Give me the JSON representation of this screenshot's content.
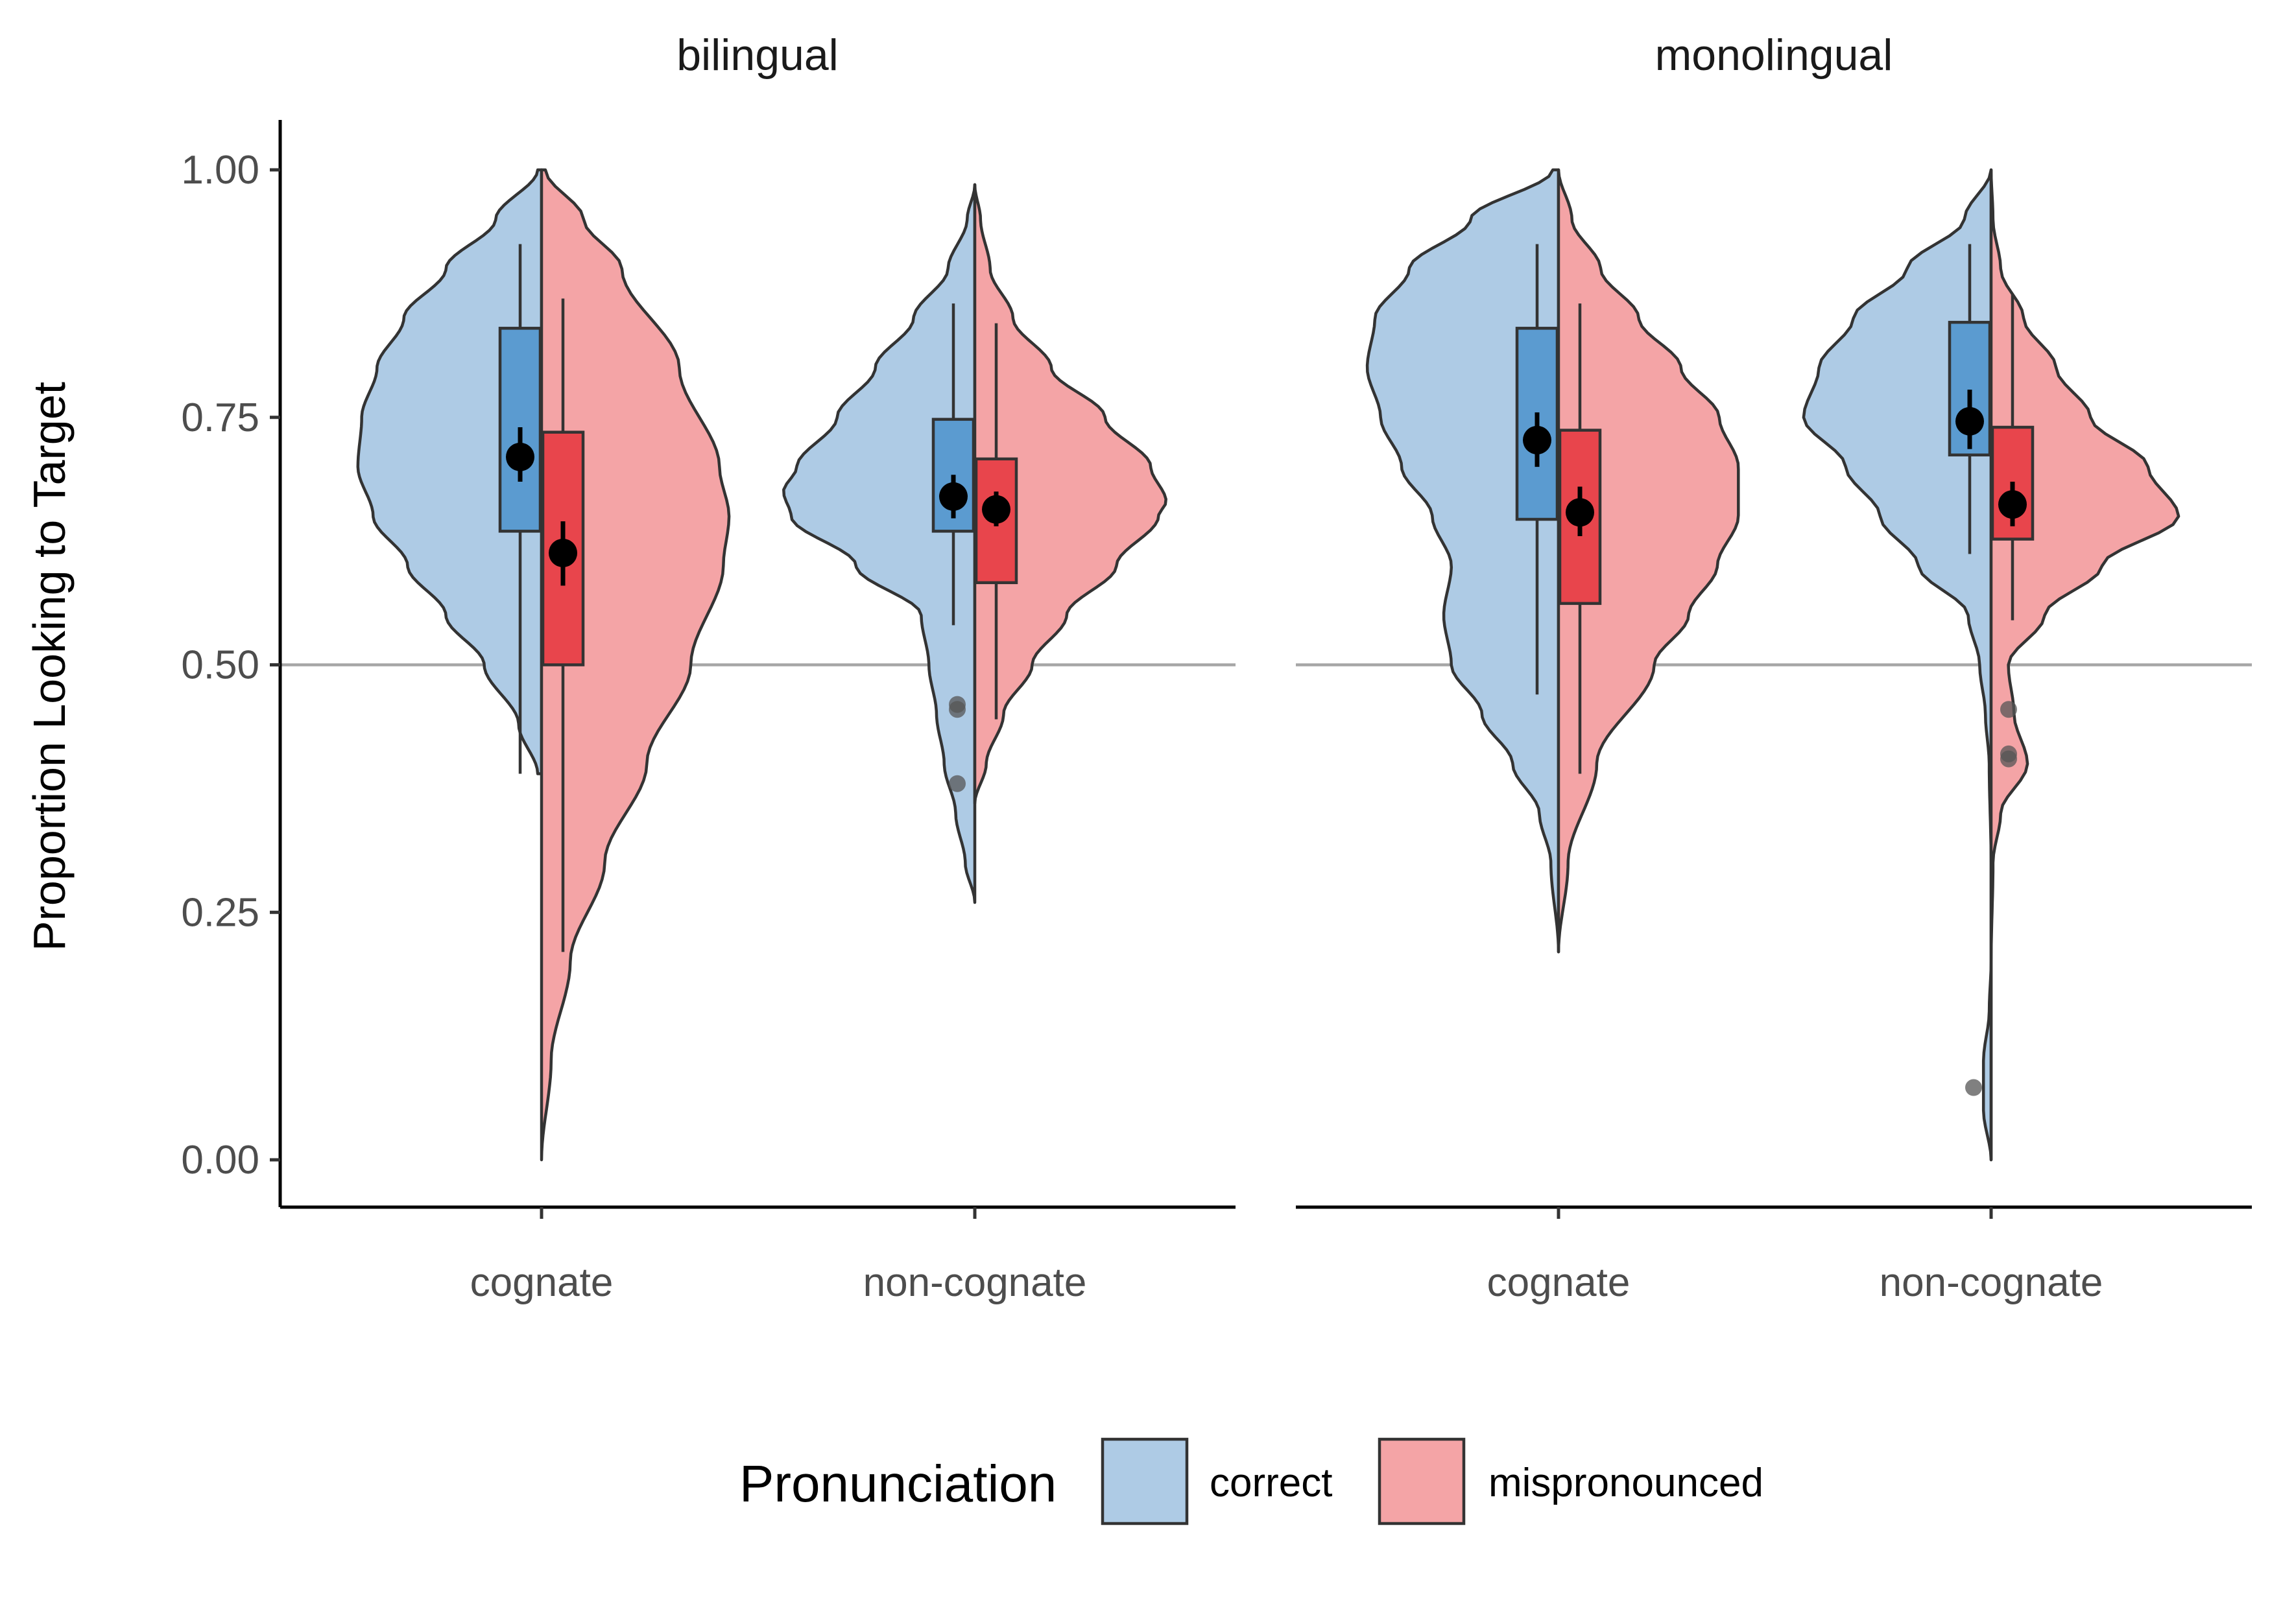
{
  "chart_data": {
    "type": "violin",
    "ylabel": "Proportion Looking to Target",
    "xlabel": "",
    "ylim": [
      0,
      1
    ],
    "yticks": [
      "0.00",
      "0.25",
      "0.50",
      "0.75",
      "1.00"
    ],
    "ytick_values": [
      0,
      0.25,
      0.5,
      0.75,
      1
    ],
    "reference_line": 0.5,
    "categories": [
      "cognate",
      "non-cognate"
    ],
    "legend": {
      "title": "Pronunciation",
      "position": "bottom",
      "entries": [
        {
          "key": "correct",
          "label": "correct",
          "fill": "#aecbe5",
          "box_fill": "#5b9bd0"
        },
        {
          "key": "mispronounced",
          "label": "mispronounced",
          "fill": "#f4a4a6",
          "box_fill": "#e8454c"
        }
      ]
    },
    "panels": [
      {
        "title": "bilingual",
        "groups": [
          {
            "category": "cognate",
            "correct": {
              "violin_min": 0.39,
              "violin_max": 1.0,
              "box": {
                "q1": 0.635,
                "median": 0.715,
                "q3": 0.84,
                "whisk_low": 0.39,
                "whisk_high": 0.925
              },
              "mean": 0.71,
              "ci": [
                0.685,
                0.74
              ],
              "outliers": [],
              "density": [
                [
                  0.39,
                  0.02
                ],
                [
                  0.44,
                  0.12
                ],
                [
                  0.5,
                  0.3
                ],
                [
                  0.55,
                  0.5
                ],
                [
                  0.6,
                  0.7
                ],
                [
                  0.65,
                  0.88
                ],
                [
                  0.7,
                  0.96
                ],
                [
                  0.75,
                  0.94
                ],
                [
                  0.8,
                  0.86
                ],
                [
                  0.85,
                  0.72
                ],
                [
                  0.9,
                  0.5
                ],
                [
                  0.95,
                  0.24
                ],
                [
                  1.0,
                  0.02
                ]
              ]
            },
            "mispronounced": {
              "violin_min": 0.0,
              "violin_max": 1.0,
              "box": {
                "q1": 0.5,
                "median": 0.62,
                "q3": 0.735,
                "whisk_low": 0.21,
                "whisk_high": 0.87
              },
              "mean": 0.613,
              "ci": [
                0.58,
                0.645
              ],
              "outliers": [],
              "density": [
                [
                  0.0,
                  0.0
                ],
                [
                  0.1,
                  0.05
                ],
                [
                  0.2,
                  0.15
                ],
                [
                  0.3,
                  0.33
                ],
                [
                  0.4,
                  0.55
                ],
                [
                  0.5,
                  0.78
                ],
                [
                  0.6,
                  0.95
                ],
                [
                  0.65,
                  0.98
                ],
                [
                  0.7,
                  0.93
                ],
                [
                  0.8,
                  0.72
                ],
                [
                  0.9,
                  0.42
                ],
                [
                  0.95,
                  0.22
                ],
                [
                  1.0,
                  0.02
                ]
              ]
            }
          },
          {
            "category": "non-cognate",
            "correct": {
              "violin_min": 0.26,
              "violin_max": 0.985,
              "box": {
                "q1": 0.635,
                "median": 0.67,
                "q3": 0.748,
                "whisk_low": 0.54,
                "whisk_high": 0.865
              },
              "mean": 0.67,
              "ci": [
                0.648,
                0.692
              ],
              "outliers": [
                0.46,
                0.455,
                0.38
              ],
              "density": [
                [
                  0.26,
                  0.0
                ],
                [
                  0.3,
                  0.05
                ],
                [
                  0.35,
                  0.1
                ],
                [
                  0.4,
                  0.16
                ],
                [
                  0.45,
                  0.2
                ],
                [
                  0.5,
                  0.24
                ],
                [
                  0.55,
                  0.28
                ],
                [
                  0.6,
                  0.62
                ],
                [
                  0.65,
                  0.96
                ],
                [
                  0.675,
                  1.0
                ],
                [
                  0.7,
                  0.93
                ],
                [
                  0.75,
                  0.72
                ],
                [
                  0.8,
                  0.52
                ],
                [
                  0.85,
                  0.32
                ],
                [
                  0.9,
                  0.14
                ],
                [
                  0.95,
                  0.04
                ],
                [
                  0.985,
                  0.0
                ]
              ]
            },
            "mispronounced": {
              "violin_min": 0.36,
              "violin_max": 0.985,
              "box": {
                "q1": 0.583,
                "median": 0.655,
                "q3": 0.708,
                "whisk_low": 0.445,
                "whisk_high": 0.845
              },
              "mean": 0.657,
              "ci": [
                0.64,
                0.675
              ],
              "outliers": [],
              "density": [
                [
                  0.36,
                  0.0
                ],
                [
                  0.4,
                  0.06
                ],
                [
                  0.45,
                  0.15
                ],
                [
                  0.5,
                  0.3
                ],
                [
                  0.55,
                  0.48
                ],
                [
                  0.6,
                  0.74
                ],
                [
                  0.65,
                  0.96
                ],
                [
                  0.665,
                  1.0
                ],
                [
                  0.7,
                  0.92
                ],
                [
                  0.75,
                  0.68
                ],
                [
                  0.8,
                  0.4
                ],
                [
                  0.85,
                  0.2
                ],
                [
                  0.9,
                  0.08
                ],
                [
                  0.95,
                  0.03
                ],
                [
                  0.985,
                  0.0
                ]
              ]
            }
          }
        ]
      },
      {
        "title": "monolingual",
        "groups": [
          {
            "category": "cognate",
            "correct": {
              "violin_min": 0.21,
              "violin_max": 1.0,
              "box": {
                "q1": 0.647,
                "median": 0.725,
                "q3": 0.84,
                "whisk_low": 0.47,
                "whisk_high": 0.925
              },
              "mean": 0.727,
              "ci": [
                0.7,
                0.755
              ],
              "outliers": [],
              "density": [
                [
                  0.21,
                  0.0
                ],
                [
                  0.3,
                  0.04
                ],
                [
                  0.35,
                  0.1
                ],
                [
                  0.4,
                  0.24
                ],
                [
                  0.45,
                  0.4
                ],
                [
                  0.5,
                  0.56
                ],
                [
                  0.55,
                  0.6
                ],
                [
                  0.6,
                  0.56
                ],
                [
                  0.65,
                  0.66
                ],
                [
                  0.7,
                  0.82
                ],
                [
                  0.75,
                  0.93
                ],
                [
                  0.8,
                  1.0
                ],
                [
                  0.85,
                  0.96
                ],
                [
                  0.9,
                  0.78
                ],
                [
                  0.95,
                  0.46
                ],
                [
                  1.0,
                  0.03
                ]
              ]
            },
            "mispronounced": {
              "violin_min": 0.21,
              "violin_max": 1.0,
              "box": {
                "q1": 0.562,
                "median": 0.66,
                "q3": 0.737,
                "whisk_low": 0.39,
                "whisk_high": 0.865
              },
              "mean": 0.654,
              "ci": [
                0.63,
                0.68
              ],
              "outliers": [],
              "density": [
                [
                  0.21,
                  0.0
                ],
                [
                  0.3,
                  0.05
                ],
                [
                  0.4,
                  0.2
                ],
                [
                  0.5,
                  0.5
                ],
                [
                  0.55,
                  0.68
                ],
                [
                  0.6,
                  0.83
                ],
                [
                  0.65,
                  0.94
                ],
                [
                  0.7,
                  0.94
                ],
                [
                  0.75,
                  0.84
                ],
                [
                  0.8,
                  0.64
                ],
                [
                  0.85,
                  0.42
                ],
                [
                  0.9,
                  0.22
                ],
                [
                  0.95,
                  0.07
                ],
                [
                  1.0,
                  0.0
                ]
              ]
            }
          },
          {
            "category": "non-cognate",
            "correct": {
              "violin_min": 0.0,
              "violin_max": 1.0,
              "box": {
                "q1": 0.712,
                "median": 0.75,
                "q3": 0.846,
                "whisk_low": 0.612,
                "whisk_high": 0.925
              },
              "mean": 0.746,
              "ci": [
                0.718,
                0.778
              ],
              "outliers": [
                0.073
              ],
              "density": [
                [
                  0.0,
                  0.0
                ],
                [
                  0.05,
                  0.04
                ],
                [
                  0.1,
                  0.04
                ],
                [
                  0.15,
                  0.01
                ],
                [
                  0.2,
                  0.0
                ],
                [
                  0.3,
                  0.0
                ],
                [
                  0.4,
                  0.01
                ],
                [
                  0.45,
                  0.03
                ],
                [
                  0.5,
                  0.06
                ],
                [
                  0.55,
                  0.12
                ],
                [
                  0.6,
                  0.38
                ],
                [
                  0.65,
                  0.58
                ],
                [
                  0.7,
                  0.76
                ],
                [
                  0.75,
                  0.98
                ],
                [
                  0.8,
                  0.9
                ],
                [
                  0.85,
                  0.72
                ],
                [
                  0.9,
                  0.44
                ],
                [
                  0.95,
                  0.14
                ],
                [
                  1.0,
                  0.0
                ]
              ]
            },
            "mispronounced": {
              "violin_min": 0.0,
              "violin_max": 1.0,
              "box": {
                "q1": 0.627,
                "median": 0.68,
                "q3": 0.74,
                "whisk_low": 0.545,
                "whisk_high": 0.875
              },
              "mean": 0.662,
              "ci": [
                0.64,
                0.685
              ],
              "outliers": [
                0.455,
                0.41,
                0.405
              ],
              "density": [
                [
                  0.0,
                  0.0
                ],
                [
                  0.2,
                  0.0
                ],
                [
                  0.3,
                  0.01
                ],
                [
                  0.35,
                  0.05
                ],
                [
                  0.4,
                  0.19
                ],
                [
                  0.45,
                  0.12
                ],
                [
                  0.5,
                  0.09
                ],
                [
                  0.55,
                  0.28
                ],
                [
                  0.6,
                  0.58
                ],
                [
                  0.65,
                  0.98
                ],
                [
                  0.7,
                  0.82
                ],
                [
                  0.75,
                  0.52
                ],
                [
                  0.8,
                  0.34
                ],
                [
                  0.85,
                  0.17
                ],
                [
                  0.9,
                  0.05
                ],
                [
                  0.95,
                  0.01
                ],
                [
                  1.0,
                  0.0
                ]
              ]
            }
          }
        ]
      }
    ]
  }
}
